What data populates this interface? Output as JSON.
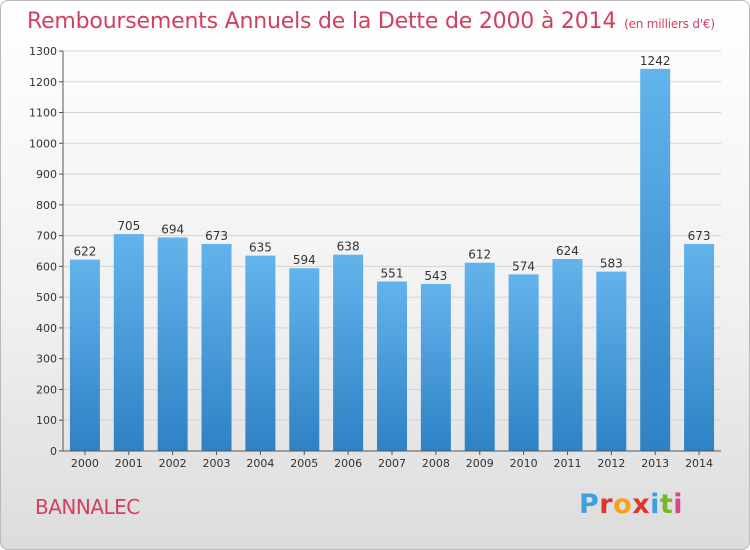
{
  "header": {
    "title": "Remboursements Annuels de la Dette de 2000 à 2014",
    "unit": "(en milliers d'€)"
  },
  "footer": {
    "commune": "BANNALEC",
    "logo_text": "Proxiti",
    "logo_colors": [
      "#3fa0dc",
      "#e0352b",
      "#f7a21a",
      "#e0352b",
      "#3fa0dc",
      "#7ab728",
      "#d8468c"
    ]
  },
  "colors": {
    "title": "#d2405f",
    "bar_light": "#63b3ec",
    "bar_dark": "#2e82c4",
    "grid": "#d4d4d4",
    "axis": "#555555"
  },
  "chart_data": {
    "type": "bar",
    "title": "Remboursements Annuels de la Dette de 2000 à 2014",
    "xlabel": "",
    "ylabel": "",
    "categories": [
      "2000",
      "2001",
      "2002",
      "2003",
      "2004",
      "2005",
      "2006",
      "2007",
      "2008",
      "2009",
      "2010",
      "2011",
      "2012",
      "2013",
      "2014"
    ],
    "values": [
      622,
      705,
      694,
      673,
      635,
      594,
      638,
      551,
      543,
      612,
      574,
      624,
      583,
      1242,
      673
    ],
    "ylim": [
      0,
      1300
    ],
    "yticks": [
      0,
      100,
      200,
      300,
      400,
      500,
      600,
      700,
      800,
      900,
      1000,
      1100,
      1200,
      1300
    ],
    "grid": true,
    "data_labels": true
  }
}
